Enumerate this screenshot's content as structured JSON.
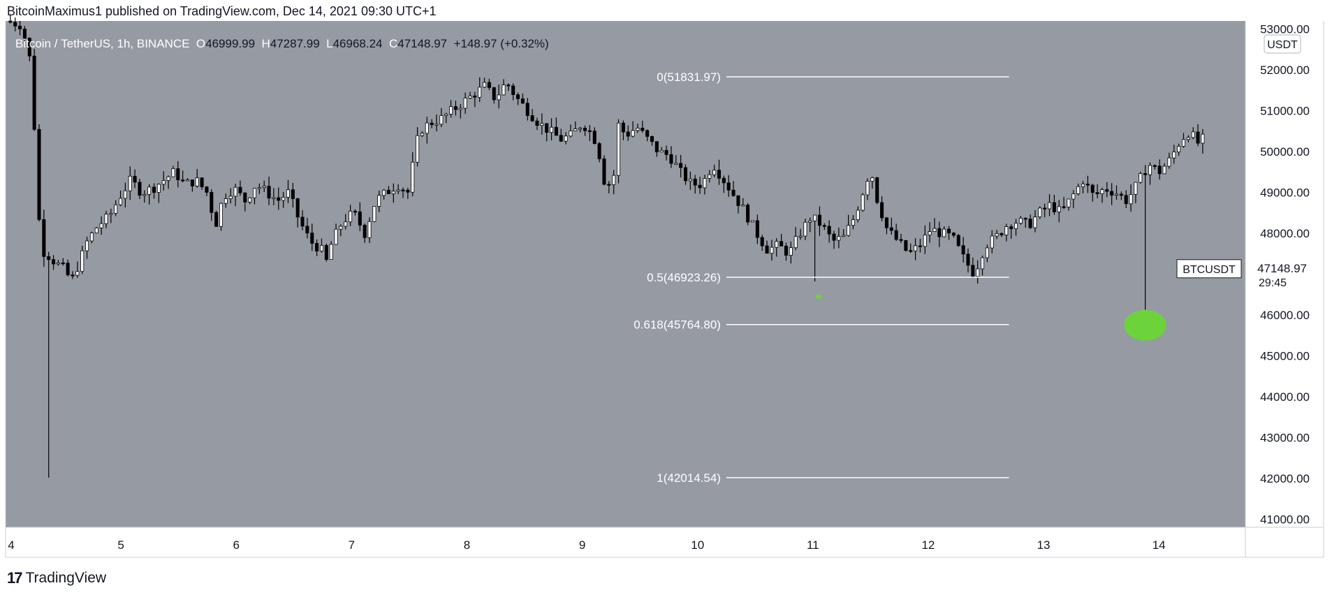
{
  "header": {
    "publisher": "BitcoinMaximus1 published on TradingView.com, Dec 14, 2021 09:30 UTC+1"
  },
  "footer": {
    "brand": "TradingView",
    "logo_icon": "tradingview-logo-icon"
  },
  "colors": {
    "plot_bg": "#969aa3",
    "up_candle": "#ffffff",
    "down_candle": "#000000",
    "fib_line": "#ffffff",
    "highlight": "#6cd43a",
    "axis_text": "#131722"
  },
  "chart_data": {
    "type": "candlestick",
    "symbol_line": {
      "name": "Bitcoin / TetherUS, 1h, BINANCE",
      "o_label": "O",
      "o": "46999.99",
      "h_label": "H",
      "h": "47287.99",
      "l_label": "L",
      "l": "46968.24",
      "c_label": "C",
      "c": "47148.97",
      "change": "+148.97 (+0.32%)"
    },
    "currency": "USDT",
    "ylim": [
      40800,
      53200
    ],
    "xlim": [
      4.0,
      14.75
    ],
    "y_ticks": [
      "41000.00",
      "42000.00",
      "43000.00",
      "44000.00",
      "45000.00",
      "46000.00",
      "47000.00",
      "48000.00",
      "49000.00",
      "50000.00",
      "51000.00",
      "52000.00",
      "53000.00"
    ],
    "x_ticks": [
      {
        "label": "4",
        "x": 4.0
      },
      {
        "label": "5",
        "x": 5.0
      },
      {
        "label": "6",
        "x": 6.0
      },
      {
        "label": "7",
        "x": 7.0
      },
      {
        "label": "8",
        "x": 8.0
      },
      {
        "label": "9",
        "x": 9.0
      },
      {
        "label": "10",
        "x": 10.0
      },
      {
        "label": "11",
        "x": 11.0
      },
      {
        "label": "12",
        "x": 12.0
      },
      {
        "label": "13",
        "x": 13.0
      },
      {
        "label": "14",
        "x": 14.0
      }
    ],
    "price_tag": {
      "symbol": "BTCUSDT",
      "price": "47148.97",
      "price_value": 47148.97,
      "countdown": "29:45"
    },
    "fib_levels": [
      {
        "label": "0(51831.97)",
        "value": 51831.97
      },
      {
        "label": "0.5(46923.26)",
        "value": 46923.26
      },
      {
        "label": "0.618(45764.80)",
        "value": 45764.8
      },
      {
        "label": "1(42014.54)",
        "value": 42014.54
      }
    ],
    "fib_x_range": [
      10.25,
      12.7
    ],
    "highlights": [
      {
        "x": 13.88,
        "y": 45750,
        "size": "large"
      },
      {
        "x": 11.05,
        "y": 46450,
        "size": "small"
      }
    ],
    "path": [
      [
        4.0,
        53200
      ],
      [
        4.15,
        53100
      ],
      [
        4.22,
        52300
      ],
      [
        4.28,
        50000
      ],
      [
        4.32,
        47600
      ],
      [
        4.38,
        47500
      ],
      [
        4.45,
        47300
      ],
      [
        4.55,
        47100
      ],
      [
        4.6,
        46800
      ],
      [
        4.68,
        47300
      ],
      [
        4.75,
        47800
      ],
      [
        4.85,
        48200
      ],
      [
        4.95,
        48400
      ],
      [
        5.05,
        48900
      ],
      [
        5.15,
        49300
      ],
      [
        5.25,
        49000
      ],
      [
        5.35,
        49100
      ],
      [
        5.45,
        49300
      ],
      [
        5.55,
        49500
      ],
      [
        5.65,
        49200
      ],
      [
        5.75,
        49300
      ],
      [
        5.85,
        49000
      ],
      [
        5.93,
        48200
      ],
      [
        6.0,
        48900
      ],
      [
        6.1,
        49100
      ],
      [
        6.2,
        48800
      ],
      [
        6.3,
        49200
      ],
      [
        6.4,
        49000
      ],
      [
        6.5,
        48800
      ],
      [
        6.6,
        49000
      ],
      [
        6.7,
        48300
      ],
      [
        6.8,
        47800
      ],
      [
        6.9,
        47600
      ],
      [
        6.95,
        47300
      ],
      [
        7.0,
        47800
      ],
      [
        7.1,
        48300
      ],
      [
        7.2,
        48500
      ],
      [
        7.3,
        48000
      ],
      [
        7.4,
        48800
      ],
      [
        7.5,
        49000
      ],
      [
        7.6,
        49200
      ],
      [
        7.7,
        49000
      ],
      [
        7.75,
        49800
      ],
      [
        7.8,
        50500
      ],
      [
        7.9,
        50700
      ],
      [
        8.0,
        50800
      ],
      [
        8.1,
        51000
      ],
      [
        8.2,
        51200
      ],
      [
        8.3,
        51400
      ],
      [
        8.4,
        51600
      ],
      [
        8.5,
        51300
      ],
      [
        8.6,
        51700
      ],
      [
        8.7,
        51300
      ],
      [
        8.8,
        51000
      ],
      [
        8.9,
        50700
      ],
      [
        9.0,
        50500
      ],
      [
        9.1,
        50300
      ],
      [
        9.2,
        50400
      ],
      [
        9.3,
        50700
      ],
      [
        9.4,
        50400
      ],
      [
        9.45,
        50000
      ],
      [
        9.5,
        49300
      ],
      [
        9.55,
        49200
      ],
      [
        9.6,
        49500
      ],
      [
        9.62,
        50700
      ],
      [
        9.7,
        50400
      ],
      [
        9.8,
        50600
      ],
      [
        9.9,
        50300
      ],
      [
        10.0,
        50000
      ],
      [
        10.1,
        49900
      ],
      [
        10.2,
        49500
      ],
      [
        10.3,
        49200
      ],
      [
        10.4,
        49200
      ],
      [
        10.5,
        49700
      ],
      [
        10.6,
        49300
      ],
      [
        10.7,
        48900
      ],
      [
        10.8,
        48500
      ],
      [
        10.9,
        48000
      ],
      [
        11.0,
        47600
      ],
      [
        11.1,
        47700
      ],
      [
        11.2,
        47500
      ],
      [
        11.3,
        48000
      ],
      [
        11.4,
        48400
      ],
      [
        11.5,
        48200
      ],
      [
        11.6,
        47800
      ],
      [
        11.7,
        47900
      ],
      [
        11.8,
        48400
      ],
      [
        11.9,
        49200
      ],
      [
        11.95,
        49600
      ],
      [
        12.0,
        48900
      ],
      [
        12.1,
        48100
      ],
      [
        12.2,
        47800
      ],
      [
        12.3,
        47500
      ],
      [
        12.4,
        47700
      ],
      [
        12.5,
        48100
      ],
      [
        12.6,
        48000
      ],
      [
        12.7,
        47900
      ],
      [
        12.8,
        47400
      ],
      [
        12.9,
        47000
      ],
      [
        13.0,
        47700
      ],
      [
        13.1,
        47900
      ],
      [
        13.2,
        48200
      ],
      [
        13.3,
        48300
      ],
      [
        13.4,
        48200
      ],
      [
        13.5,
        48500
      ],
      [
        13.6,
        48700
      ],
      [
        13.7,
        48500
      ],
      [
        13.8,
        48900
      ],
      [
        13.9,
        49300
      ],
      [
        14.0,
        48900
      ],
      [
        14.1,
        49100
      ],
      [
        14.2,
        49000
      ],
      [
        14.3,
        48800
      ],
      [
        14.4,
        49200
      ],
      [
        14.5,
        49700
      ],
      [
        14.6,
        49500
      ],
      [
        14.7,
        49800
      ],
      [
        14.8,
        50300
      ],
      [
        14.88,
        50500
      ],
      [
        14.95,
        50200
      ],
      [
        15.0,
        50300
      ]
    ]
  }
}
